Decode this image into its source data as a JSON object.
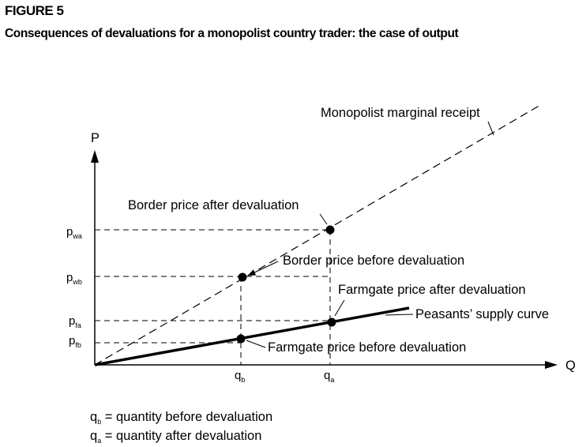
{
  "figure_label": "FIGURE 5",
  "title": "Consequences of devaluations for a  monopolist country trader: the case of output",
  "axes": {
    "y_label": "P",
    "x_label": "Q",
    "y_ticks": [
      {
        "base": "p",
        "sub": "wa"
      },
      {
        "base": "p",
        "sub": "wb"
      },
      {
        "base": "p",
        "sub": "fa"
      },
      {
        "base": "p",
        "sub": "fb"
      }
    ],
    "x_ticks": [
      {
        "base": "q",
        "sub": "b"
      },
      {
        "base": "q",
        "sub": "a"
      }
    ]
  },
  "curves": {
    "marginal_receipt": "Monopolist marginal receipt",
    "supply": "Peasants’ supply curve"
  },
  "points": {
    "border_after": "Border price after devaluation",
    "border_before": "Border price before devaluation",
    "farmgate_after": "Farmgate price after devaluation",
    "farmgate_before": "Farmgate price before devaluation"
  },
  "legend": [
    {
      "base": "q",
      "sub": "b",
      "text": " = quantity before devaluation"
    },
    {
      "base": "q",
      "sub": "a",
      "text": " = quantity after devaluation"
    }
  ]
}
